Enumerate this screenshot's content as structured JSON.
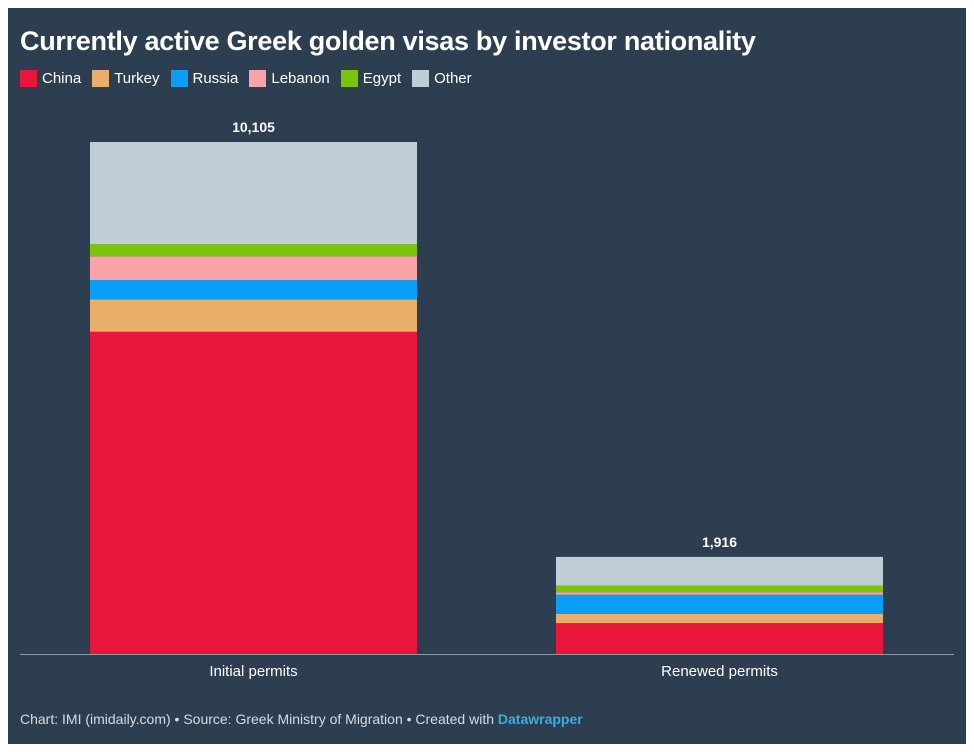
{
  "chart_data": {
    "type": "bar",
    "stacked": true,
    "title": "Currently active Greek golden visas by investor nationality",
    "categories": [
      "Initial permits",
      "Renewed permits"
    ],
    "totals": [
      "10,105",
      "1,916"
    ],
    "series": [
      {
        "name": "China",
        "color": "#e8163b",
        "values": [
          6360,
          610
        ]
      },
      {
        "name": "Turkey",
        "color": "#e8ae6a",
        "values": [
          640,
          180
        ]
      },
      {
        "name": "Russia",
        "color": "#0a9ef5",
        "values": [
          380,
          380
        ]
      },
      {
        "name": "Lebanon",
        "color": "#f7a3a8",
        "values": [
          470,
          50
        ]
      },
      {
        "name": "Egypt",
        "color": "#7ac50c",
        "values": [
          240,
          130
        ]
      },
      {
        "name": "Other",
        "color": "#c0cfd6",
        "values": [
          2015,
          566
        ]
      }
    ],
    "ylim": [
      0,
      10105
    ],
    "grid": false,
    "legend_position": "top-left"
  },
  "footer": {
    "credit": "Chart: IMI (imidaily.com) • Source: Greek Ministry of Migration • Created with ",
    "brand": "Datawrapper"
  }
}
